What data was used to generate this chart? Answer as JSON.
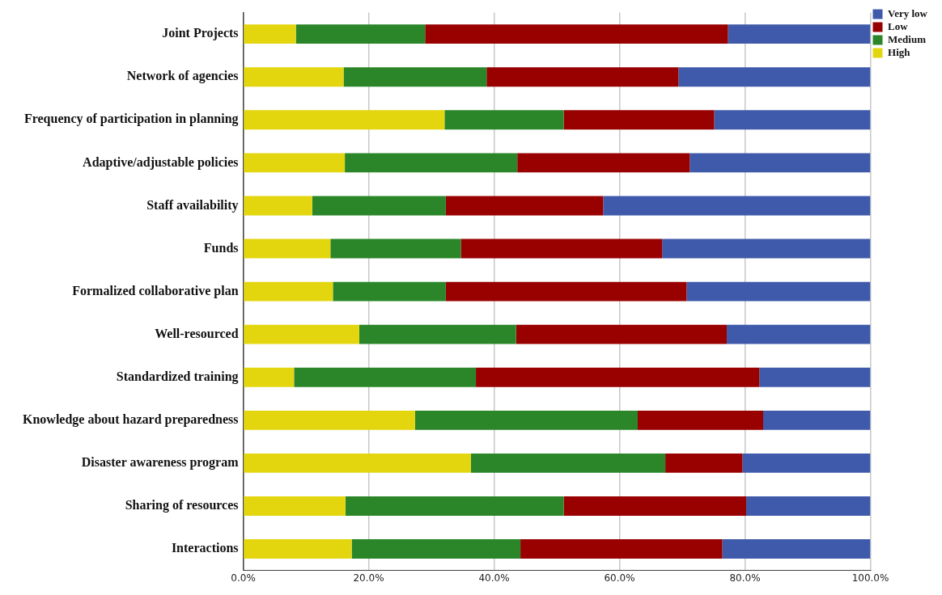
{
  "chart_data": {
    "type": "bar",
    "orientation": "horizontal",
    "stacked": true,
    "legend": "top right",
    "grid": "x",
    "categories": [
      "Joint Projects",
      "Network of agencies",
      "Frequency of participation in planning",
      "Adaptive/adjustable policies",
      "Staff availability",
      "Funds",
      "Formalized collaborative plan",
      "Well-resourced",
      "Standardized training",
      "Knowledge about hazard preparedness",
      "Disaster awareness program",
      "Sharing of resources",
      "Interactions"
    ],
    "xlim": [
      0,
      100
    ],
    "xticks": [
      {
        "value": 0,
        "label": "0.0%"
      },
      {
        "value": 20,
        "label": "20.0%"
      },
      {
        "value": 40,
        "label": "40.0%"
      },
      {
        "value": 60,
        "label": "60.0%"
      },
      {
        "value": 80,
        "label": "80.0%"
      },
      {
        "value": 100,
        "label": "100.0%"
      }
    ],
    "series": [
      {
        "name": "High",
        "color": "#e3d60f",
        "values": [
          8.4,
          16.0,
          32.1,
          16.2,
          11.0,
          13.9,
          14.3,
          18.5,
          8.1,
          27.4,
          36.3,
          16.3,
          17.3
        ]
      },
      {
        "name": "Medium",
        "color": "#2a8629",
        "values": [
          20.6,
          22.8,
          19.0,
          27.5,
          21.3,
          20.8,
          18.0,
          25.0,
          29.0,
          35.5,
          31.0,
          34.8,
          26.9
        ]
      },
      {
        "name": "Low",
        "color": "#990000",
        "values": [
          48.3,
          30.6,
          24.0,
          27.5,
          25.1,
          32.1,
          38.4,
          33.6,
          45.2,
          20.0,
          12.3,
          29.1,
          32.2
        ]
      },
      {
        "name": "Very low",
        "color": "#3f5aaa",
        "values": [
          22.7,
          30.6,
          24.9,
          28.8,
          42.6,
          33.2,
          29.3,
          22.9,
          17.7,
          17.1,
          20.4,
          19.8,
          23.6
        ]
      }
    ]
  }
}
